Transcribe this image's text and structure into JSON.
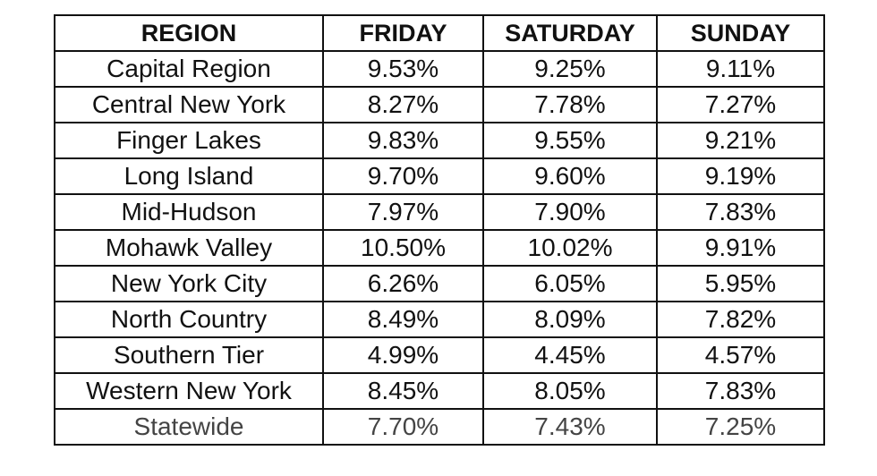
{
  "table": {
    "header": [
      "REGION",
      "FRIDAY",
      "SATURDAY",
      "SUNDAY"
    ],
    "rows": [
      [
        "Capital Region",
        "9.53%",
        "9.25%",
        "9.11%"
      ],
      [
        "Central New York",
        "8.27%",
        "7.78%",
        "7.27%"
      ],
      [
        "Finger Lakes",
        "9.83%",
        "9.55%",
        "9.21%"
      ],
      [
        "Long Island",
        "9.70%",
        "9.60%",
        "9.19%"
      ],
      [
        "Mid-Hudson",
        "7.97%",
        "7.90%",
        "7.83%"
      ],
      [
        "Mohawk Valley",
        "10.50%",
        "10.02%",
        "9.91%"
      ],
      [
        "New York City",
        "6.26%",
        "6.05%",
        "5.95%"
      ],
      [
        "North Country",
        "8.49%",
        "8.09%",
        "7.82%"
      ],
      [
        "Southern Tier",
        "4.99%",
        "4.45%",
        "4.57%"
      ],
      [
        "Western New York",
        "8.45%",
        "8.05%",
        "7.83%"
      ],
      [
        "Statewide",
        "7.70%",
        "7.43%",
        "7.25%"
      ]
    ]
  }
}
